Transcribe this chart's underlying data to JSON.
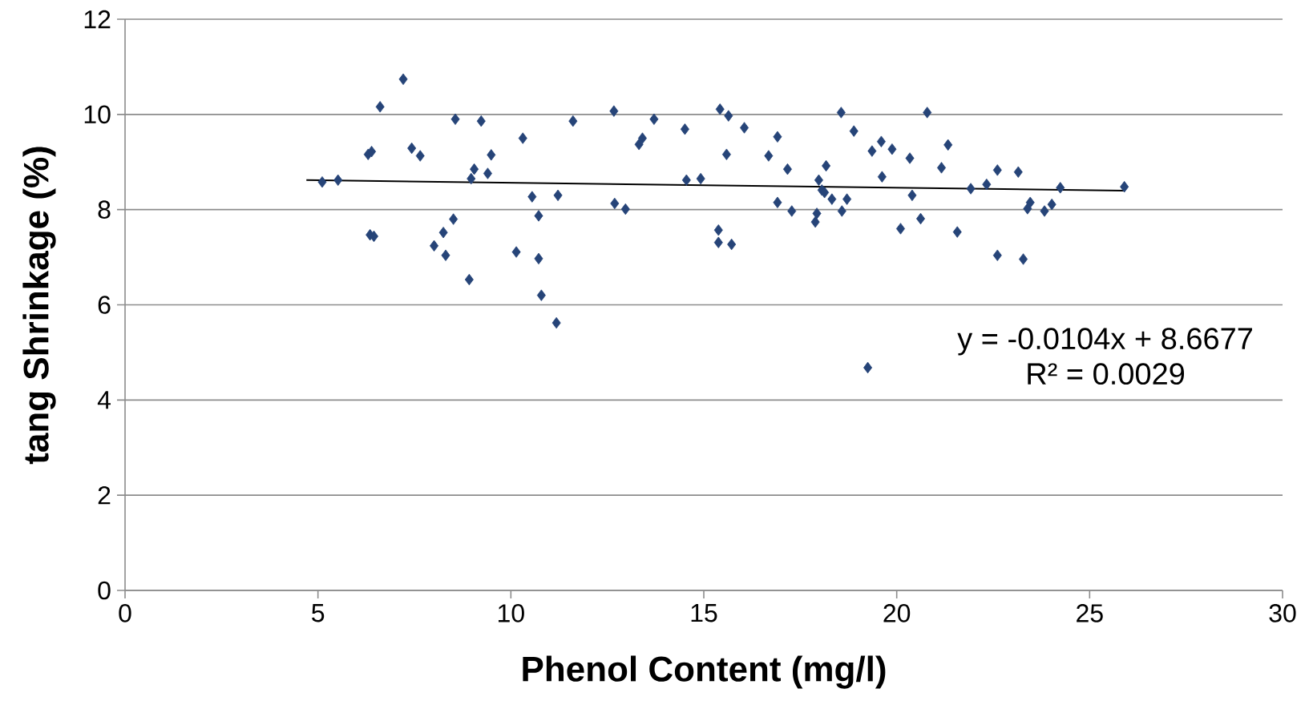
{
  "chart_data": {
    "type": "scatter",
    "xlabel": "Phenol Content (mg/l)",
    "ylabel": "tang Shrinkage (%)",
    "xlim": [
      0,
      30
    ],
    "xticks": [
      0,
      5,
      10,
      15,
      20,
      25,
      30
    ],
    "ylim": [
      0,
      12
    ],
    "yticks": [
      0,
      2,
      4,
      6,
      8,
      10,
      12
    ],
    "grid": "y",
    "annotations": [
      "y = -0.0104x + 8.6677",
      "R² = 0.0029"
    ],
    "series": [
      {
        "color": "#264478",
        "marker": "diamond",
        "x": [
          5.11,
          5.52,
          6.3,
          6.39,
          6.35,
          6.45,
          6.61,
          7.21,
          7.43,
          7.65,
          8.01,
          8.25,
          8.31,
          8.51,
          8.56,
          8.92,
          8.97,
          9.05,
          9.23,
          9.4,
          9.49,
          10.14,
          10.31,
          10.55,
          10.72,
          10.72,
          10.79,
          11.18,
          11.22,
          11.61,
          12.67,
          12.69,
          12.97,
          13.32,
          13.41,
          13.71,
          14.51,
          14.55,
          14.92,
          15.38,
          15.38,
          15.42,
          15.59,
          15.64,
          15.72,
          16.05,
          16.68,
          16.91,
          16.91,
          17.17,
          17.28,
          17.89,
          17.93,
          17.98,
          18.06,
          18.13,
          18.17,
          18.32,
          18.56,
          18.58,
          18.71,
          18.89,
          19.25,
          19.36,
          19.6,
          19.62,
          19.88,
          20.1,
          20.34,
          20.4,
          20.62,
          20.79,
          21.16,
          21.33,
          21.57,
          21.92,
          22.33,
          22.61,
          22.61,
          23.15,
          23.28,
          23.39,
          23.46,
          23.83,
          24.02,
          24.24,
          25.9
        ],
        "values": [
          8.58,
          8.62,
          9.16,
          9.22,
          7.47,
          7.44,
          10.16,
          10.74,
          9.29,
          9.13,
          7.24,
          7.52,
          7.04,
          7.8,
          9.9,
          6.53,
          8.65,
          8.85,
          9.86,
          8.76,
          9.15,
          7.11,
          9.5,
          8.27,
          7.87,
          6.97,
          6.2,
          5.62,
          8.3,
          9.86,
          10.07,
          8.13,
          8.01,
          9.37,
          9.5,
          9.9,
          9.69,
          8.62,
          8.65,
          7.57,
          7.31,
          10.11,
          9.16,
          9.97,
          7.27,
          9.72,
          9.13,
          9.53,
          8.15,
          8.85,
          7.97,
          7.74,
          7.92,
          8.62,
          8.41,
          8.36,
          8.92,
          8.22,
          10.04,
          7.97,
          8.22,
          9.65,
          4.68,
          9.23,
          9.43,
          8.69,
          9.27,
          7.6,
          9.08,
          8.3,
          7.81,
          10.04,
          8.88,
          9.36,
          7.53,
          8.44,
          8.53,
          7.04,
          8.83,
          8.79,
          6.96,
          8.02,
          8.15,
          7.97,
          8.11,
          8.46,
          8.48
        ]
      },
      {
        "type": "line",
        "color": "#000000",
        "marker": "none",
        "x": [
          4.7,
          25.9
        ],
        "values": [
          8.62,
          8.4
        ]
      }
    ]
  }
}
